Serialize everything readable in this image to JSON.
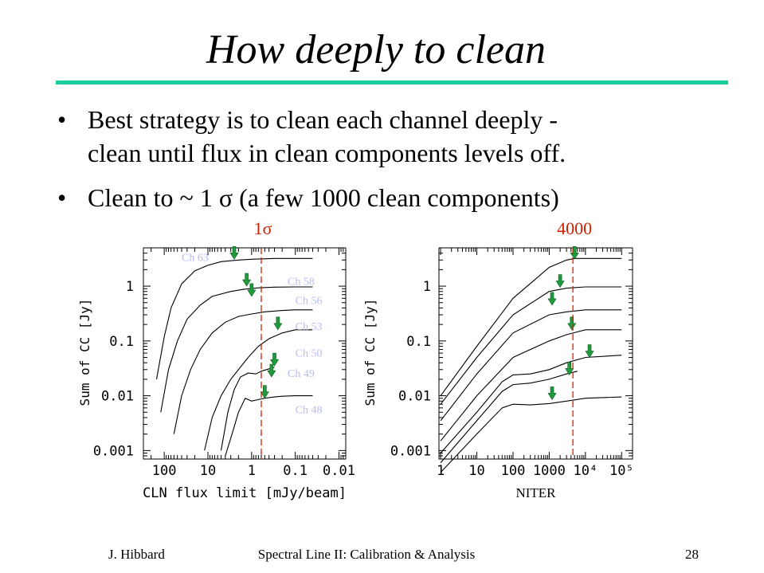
{
  "slide": {
    "title": "How deeply to clean",
    "bullets": [
      {
        "line1": "Best strategy is to clean each channel deeply -",
        "line2": "clean until flux in clean components levels off."
      },
      {
        "line1": "Clean to ~ 1 σ    (a few 1000 clean components)"
      }
    ],
    "footer": {
      "author": "J. Hibbard",
      "course": "Spectral Line II: Calibration & Analysis",
      "page": "28"
    }
  },
  "colors": {
    "rule": "#1bcf9c",
    "marker": "#cc2200",
    "arrow": "#1f9a3c",
    "channel_label": "#b9bcf0"
  },
  "chart_data": [
    {
      "type": "line",
      "title": "",
      "xlabel": "CLN flux limit [mJy/beam]",
      "ylabel": "Sum of CC [Jy]",
      "x_scale": "log",
      "y_scale": "log",
      "x_reversed": true,
      "xlim": [
        300,
        0.007
      ],
      "ylim": [
        0.0007,
        5
      ],
      "xticks": [
        100,
        10,
        1,
        0.1,
        0.01
      ],
      "xtick_labels": [
        "100",
        "10",
        "1",
        "0.1",
        "0.01"
      ],
      "yticks": [
        0.001,
        0.01,
        0.1,
        1
      ],
      "ytick_labels": [
        "0.001",
        "0.01",
        "0.1",
        "1"
      ],
      "marker_label": "1σ",
      "marker_x": 0.6,
      "series": [
        {
          "name": "Ch 63",
          "x": [
            150,
            100,
            70,
            40,
            20,
            10,
            5,
            2,
            1,
            0.3,
            0.1,
            0.04
          ],
          "y": [
            0.02,
            0.12,
            0.4,
            1.1,
            1.9,
            2.4,
            2.8,
            3.0,
            3.1,
            3.2,
            3.2,
            3.2
          ]
        },
        {
          "name": "Ch 58",
          "x": [
            120,
            80,
            50,
            30,
            15,
            8,
            3,
            1.5,
            0.7,
            0.3,
            0.1,
            0.04
          ],
          "y": [
            0.005,
            0.03,
            0.1,
            0.25,
            0.45,
            0.65,
            0.8,
            0.88,
            0.93,
            0.96,
            0.97,
            0.97
          ]
        },
        {
          "name": "Ch 56",
          "x": [
            60,
            40,
            25,
            15,
            8,
            4,
            2,
            1,
            0.5,
            0.2,
            0.1,
            0.04
          ],
          "y": [
            0.002,
            0.01,
            0.03,
            0.07,
            0.14,
            0.22,
            0.28,
            0.31,
            0.34,
            0.36,
            0.37,
            0.37
          ]
        },
        {
          "name": "Ch 53",
          "x": [
            12,
            8,
            5,
            3,
            2,
            1.2,
            0.7,
            0.4,
            0.2,
            0.1,
            0.04
          ],
          "y": [
            0.001,
            0.004,
            0.01,
            0.02,
            0.03,
            0.05,
            0.08,
            0.11,
            0.14,
            0.16,
            0.16
          ]
        },
        {
          "name": "Ch 50",
          "x": [
            5,
            3.5,
            2.5,
            1.8,
            1.2,
            0.8,
            0.6,
            0.4,
            0.3
          ],
          "y": [
            0.001,
            0.005,
            0.013,
            0.022,
            0.026,
            0.025,
            0.028,
            0.031,
            0.033
          ]
        },
        {
          "name": "Ch 49",
          "x": [
            4,
            2.8,
            2,
            1.4,
            1,
            0.7,
            0.5,
            0.3,
            0.2,
            0.1,
            0.04
          ],
          "y": [
            0.0008,
            0.002,
            0.005,
            0.009,
            0.008,
            0.0085,
            0.009,
            0.0095,
            0.0098,
            0.01,
            0.01
          ]
        }
      ],
      "channel_labels": [
        {
          "text": "Ch 63",
          "x": 40,
          "y": 2.9
        },
        {
          "text": "Ch 58",
          "x": 0.15,
          "y": 1.05
        },
        {
          "text": "Ch 56",
          "x": 0.1,
          "y": 0.47
        },
        {
          "text": "Ch 53",
          "x": 0.1,
          "y": 0.16
        },
        {
          "text": "Ch 50",
          "x": 0.1,
          "y": 0.052
        },
        {
          "text": "Ch 49",
          "x": 0.15,
          "y": 0.022
        },
        {
          "text": "Ch 48",
          "x": 0.1,
          "y": 0.0048
        }
      ],
      "arrows": [
        {
          "x": 2.5,
          "y": 3.1
        },
        {
          "x": 1.3,
          "y": 1.0
        },
        {
          "x": 1.0,
          "y": 0.65
        },
        {
          "x": 0.25,
          "y": 0.16
        },
        {
          "x": 0.3,
          "y": 0.035
        },
        {
          "x": 0.35,
          "y": 0.022
        },
        {
          "x": 0.5,
          "y": 0.009
        }
      ]
    },
    {
      "type": "line",
      "title": "",
      "xlabel": "NITER",
      "ylabel": "Sum of CC [Jy]",
      "x_scale": "log",
      "y_scale": "log",
      "xlim": [
        0.9,
        200000
      ],
      "ylim": [
        0.0007,
        5
      ],
      "xticks": [
        1,
        10,
        100,
        1000,
        10000,
        100000
      ],
      "xtick_labels": [
        "1",
        "10",
        "100",
        "1000",
        "10⁴",
        "10⁵"
      ],
      "yticks": [
        0.001,
        0.01,
        0.1,
        1
      ],
      "ytick_labels": [
        "0.001",
        "0.01",
        "0.1",
        "1"
      ],
      "marker_label": "4000",
      "marker_x": 4500,
      "series": [
        {
          "name": "Ch 63",
          "x": [
            1,
            10,
            100,
            1000,
            3000,
            5000,
            10000,
            100000
          ],
          "y": [
            0.01,
            0.08,
            0.6,
            2.2,
            3.0,
            3.2,
            3.2,
            3.2
          ]
        },
        {
          "name": "Ch 58",
          "x": [
            1,
            10,
            100,
            1000,
            3000,
            10000,
            100000
          ],
          "y": [
            0.007,
            0.05,
            0.3,
            0.8,
            0.92,
            0.97,
            0.97
          ]
        },
        {
          "name": "Ch 56",
          "x": [
            1,
            10,
            100,
            1000,
            3000,
            10000,
            100000
          ],
          "y": [
            0.0035,
            0.025,
            0.14,
            0.3,
            0.34,
            0.37,
            0.37
          ]
        },
        {
          "name": "Ch 53",
          "x": [
            1,
            10,
            100,
            1000,
            3000,
            10000,
            100000
          ],
          "y": [
            0.0015,
            0.01,
            0.05,
            0.1,
            0.13,
            0.16,
            0.16
          ]
        },
        {
          "name": "Ch 50",
          "x": [
            1,
            10,
            50,
            100,
            300,
            1000,
            3000,
            10000,
            100000
          ],
          "y": [
            0.0009,
            0.005,
            0.018,
            0.024,
            0.025,
            0.03,
            0.04,
            0.05,
            0.055
          ]
        },
        {
          "name": "Ch 49",
          "x": [
            1,
            10,
            50,
            100,
            300,
            1000,
            3000,
            6000
          ],
          "y": [
            0.0006,
            0.0035,
            0.012,
            0.016,
            0.017,
            0.02,
            0.025,
            0.028
          ]
        },
        {
          "name": "Ch 48",
          "x": [
            1,
            10,
            50,
            100,
            300,
            1000,
            3000,
            10000,
            100000
          ],
          "y": [
            0.0004,
            0.002,
            0.006,
            0.007,
            0.0068,
            0.0072,
            0.008,
            0.009,
            0.0095
          ]
        }
      ],
      "arrows": [
        {
          "x": 5000,
          "y": 3.1
        },
        {
          "x": 2000,
          "y": 0.95
        },
        {
          "x": 1200,
          "y": 0.45
        },
        {
          "x": 4200,
          "y": 0.16
        },
        {
          "x": 13000,
          "y": 0.05
        },
        {
          "x": 3600,
          "y": 0.024
        },
        {
          "x": 1200,
          "y": 0.0085
        }
      ]
    }
  ]
}
